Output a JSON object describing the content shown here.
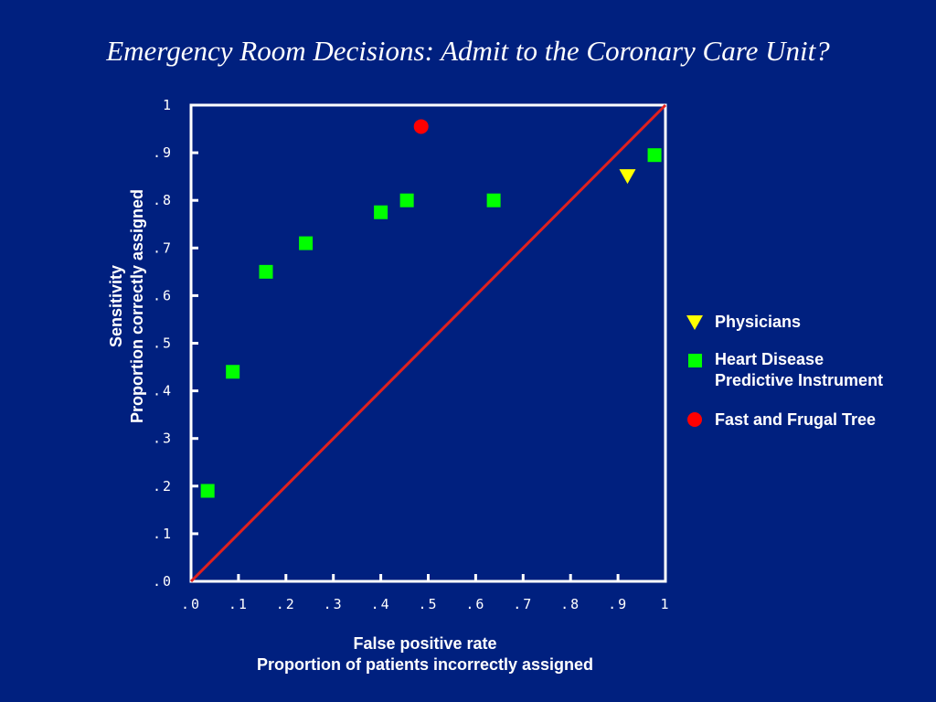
{
  "chart_data": {
    "type": "scatter",
    "title": "Emergency Room Decisions: Admit to the Coronary Care Unit?",
    "xlabel": [
      "False positive rate",
      "Proportion of patients incorrectly assigned"
    ],
    "ylabel": [
      "Sensitivity",
      "Proportion correctly assigned"
    ],
    "xlim": [
      0,
      1
    ],
    "ylim": [
      0,
      1
    ],
    "xticks": [
      ".0",
      ".1",
      ".2",
      ".3",
      ".4",
      ".5",
      ".6",
      ".7",
      ".8",
      ".9",
      "1"
    ],
    "yticks": [
      ".0",
      ".1",
      ".2",
      ".3",
      ".4",
      ".5",
      ".6",
      ".7",
      ".8",
      ".9",
      "1"
    ],
    "grid": false,
    "legend_position": "right",
    "diagonal": {
      "from": [
        0,
        0
      ],
      "to": [
        1,
        1
      ],
      "color": "#e0201e"
    },
    "series": [
      {
        "name": "Physicians",
        "marker": "triangle-down",
        "color": "#ffff00",
        "points": [
          [
            0.92,
            0.85
          ]
        ]
      },
      {
        "name": "Heart Disease Predictive Instrument",
        "name_lines": [
          "Heart Disease",
          "Predictive Instrument"
        ],
        "marker": "square",
        "color": "#00ff00",
        "points": [
          [
            0.035,
            0.19
          ],
          [
            0.088,
            0.44
          ],
          [
            0.158,
            0.65
          ],
          [
            0.242,
            0.71
          ],
          [
            0.4,
            0.775
          ],
          [
            0.455,
            0.8
          ],
          [
            0.638,
            0.8
          ],
          [
            0.977,
            0.895
          ]
        ]
      },
      {
        "name": "Fast and Frugal Tree",
        "marker": "circle",
        "color": "#ff0000",
        "points": [
          [
            0.485,
            0.955
          ]
        ]
      }
    ]
  }
}
